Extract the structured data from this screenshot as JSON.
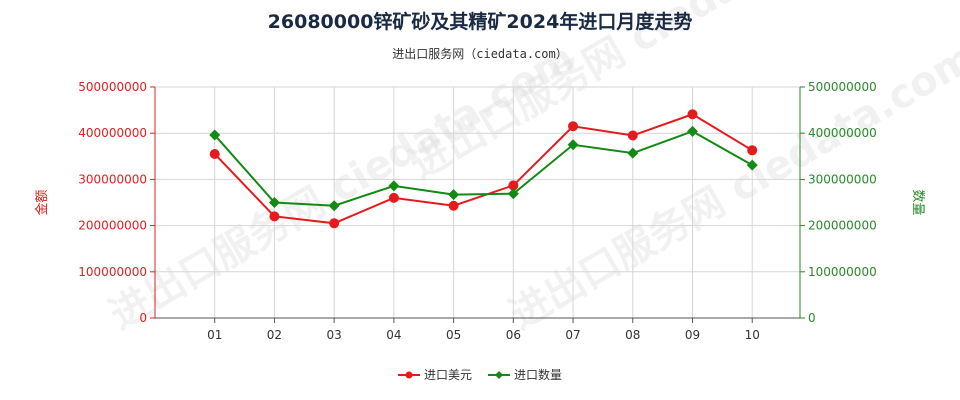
{
  "watermark": "进出口服务网 ciedata.com",
  "chart_data": {
    "type": "line",
    "title": "26080000锌矿砂及其精矿2024年进口月度走势",
    "subtitle": "进出口服务网（ciedata.com）",
    "categories": [
      "01",
      "02",
      "03",
      "04",
      "05",
      "06",
      "07",
      "08",
      "09",
      "10"
    ],
    "y_left": {
      "label": "金额",
      "ylim": [
        0,
        500000000
      ],
      "ticks": [
        "0",
        "100000000",
        "200000000",
        "300000000",
        "400000000",
        "500000000"
      ],
      "color": "#e02020"
    },
    "y_right": {
      "label": "数量",
      "ylim": [
        0,
        500000000
      ],
      "ticks": [
        "0",
        "100000000",
        "200000000",
        "300000000",
        "400000000",
        "500000000"
      ],
      "color": "#2a8a2a"
    },
    "series": [
      {
        "name": "进口美元",
        "axis": "left",
        "color": "#e41a1c",
        "marker": "circle",
        "values": [
          355000000,
          220000000,
          205000000,
          260000000,
          243000000,
          287000000,
          415000000,
          395000000,
          441000000,
          363000000
        ]
      },
      {
        "name": "进口数量",
        "axis": "right",
        "color": "#138a13",
        "marker": "diamond",
        "values": [
          396000000,
          250000000,
          243000000,
          286000000,
          267000000,
          269000000,
          375000000,
          357000000,
          404000000,
          331000000
        ]
      }
    ],
    "grid": true,
    "legend": "bottom-center"
  }
}
